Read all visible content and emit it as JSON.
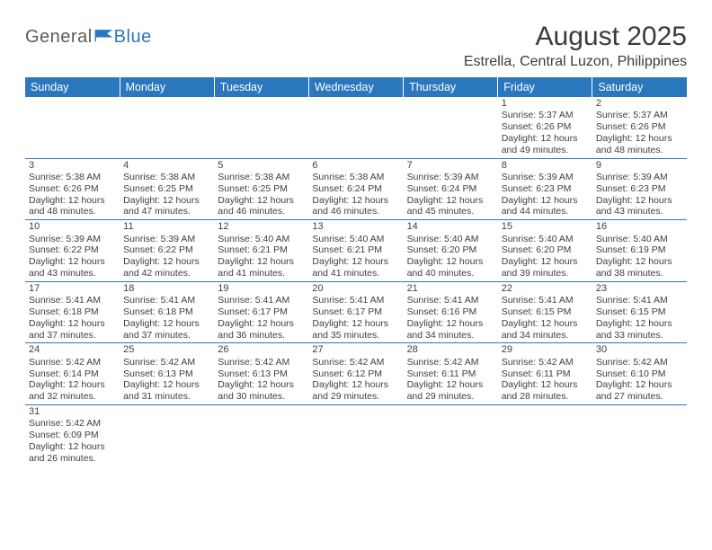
{
  "logo": {
    "text1": "General",
    "text2": "Blue"
  },
  "title": "August 2025",
  "location": "Estrella, Central Luzon, Philippines",
  "colors": {
    "header_bg": "#2b77bd",
    "header_text": "#ffffff",
    "border": "#2b77bd",
    "body_text": "#404040",
    "logo_gray": "#5b5b5b",
    "logo_blue": "#2b77bd",
    "background": "#ffffff"
  },
  "weekdays": [
    "Sunday",
    "Monday",
    "Tuesday",
    "Wednesday",
    "Thursday",
    "Friday",
    "Saturday"
  ],
  "weeks": [
    [
      null,
      null,
      null,
      null,
      null,
      {
        "day": "1",
        "sunrise": "5:37 AM",
        "sunset": "6:26 PM",
        "dl_h": "12",
        "dl_m": "49"
      },
      {
        "day": "2",
        "sunrise": "5:37 AM",
        "sunset": "6:26 PM",
        "dl_h": "12",
        "dl_m": "48"
      }
    ],
    [
      {
        "day": "3",
        "sunrise": "5:38 AM",
        "sunset": "6:26 PM",
        "dl_h": "12",
        "dl_m": "48"
      },
      {
        "day": "4",
        "sunrise": "5:38 AM",
        "sunset": "6:25 PM",
        "dl_h": "12",
        "dl_m": "47"
      },
      {
        "day": "5",
        "sunrise": "5:38 AM",
        "sunset": "6:25 PM",
        "dl_h": "12",
        "dl_m": "46"
      },
      {
        "day": "6",
        "sunrise": "5:38 AM",
        "sunset": "6:24 PM",
        "dl_h": "12",
        "dl_m": "46"
      },
      {
        "day": "7",
        "sunrise": "5:39 AM",
        "sunset": "6:24 PM",
        "dl_h": "12",
        "dl_m": "45"
      },
      {
        "day": "8",
        "sunrise": "5:39 AM",
        "sunset": "6:23 PM",
        "dl_h": "12",
        "dl_m": "44"
      },
      {
        "day": "9",
        "sunrise": "5:39 AM",
        "sunset": "6:23 PM",
        "dl_h": "12",
        "dl_m": "43"
      }
    ],
    [
      {
        "day": "10",
        "sunrise": "5:39 AM",
        "sunset": "6:22 PM",
        "dl_h": "12",
        "dl_m": "43"
      },
      {
        "day": "11",
        "sunrise": "5:39 AM",
        "sunset": "6:22 PM",
        "dl_h": "12",
        "dl_m": "42"
      },
      {
        "day": "12",
        "sunrise": "5:40 AM",
        "sunset": "6:21 PM",
        "dl_h": "12",
        "dl_m": "41"
      },
      {
        "day": "13",
        "sunrise": "5:40 AM",
        "sunset": "6:21 PM",
        "dl_h": "12",
        "dl_m": "41"
      },
      {
        "day": "14",
        "sunrise": "5:40 AM",
        "sunset": "6:20 PM",
        "dl_h": "12",
        "dl_m": "40"
      },
      {
        "day": "15",
        "sunrise": "5:40 AM",
        "sunset": "6:20 PM",
        "dl_h": "12",
        "dl_m": "39"
      },
      {
        "day": "16",
        "sunrise": "5:40 AM",
        "sunset": "6:19 PM",
        "dl_h": "12",
        "dl_m": "38"
      }
    ],
    [
      {
        "day": "17",
        "sunrise": "5:41 AM",
        "sunset": "6:18 PM",
        "dl_h": "12",
        "dl_m": "37"
      },
      {
        "day": "18",
        "sunrise": "5:41 AM",
        "sunset": "6:18 PM",
        "dl_h": "12",
        "dl_m": "37"
      },
      {
        "day": "19",
        "sunrise": "5:41 AM",
        "sunset": "6:17 PM",
        "dl_h": "12",
        "dl_m": "36"
      },
      {
        "day": "20",
        "sunrise": "5:41 AM",
        "sunset": "6:17 PM",
        "dl_h": "12",
        "dl_m": "35"
      },
      {
        "day": "21",
        "sunrise": "5:41 AM",
        "sunset": "6:16 PM",
        "dl_h": "12",
        "dl_m": "34"
      },
      {
        "day": "22",
        "sunrise": "5:41 AM",
        "sunset": "6:15 PM",
        "dl_h": "12",
        "dl_m": "34"
      },
      {
        "day": "23",
        "sunrise": "5:41 AM",
        "sunset": "6:15 PM",
        "dl_h": "12",
        "dl_m": "33"
      }
    ],
    [
      {
        "day": "24",
        "sunrise": "5:42 AM",
        "sunset": "6:14 PM",
        "dl_h": "12",
        "dl_m": "32"
      },
      {
        "day": "25",
        "sunrise": "5:42 AM",
        "sunset": "6:13 PM",
        "dl_h": "12",
        "dl_m": "31"
      },
      {
        "day": "26",
        "sunrise": "5:42 AM",
        "sunset": "6:13 PM",
        "dl_h": "12",
        "dl_m": "30"
      },
      {
        "day": "27",
        "sunrise": "5:42 AM",
        "sunset": "6:12 PM",
        "dl_h": "12",
        "dl_m": "29"
      },
      {
        "day": "28",
        "sunrise": "5:42 AM",
        "sunset": "6:11 PM",
        "dl_h": "12",
        "dl_m": "29"
      },
      {
        "day": "29",
        "sunrise": "5:42 AM",
        "sunset": "6:11 PM",
        "dl_h": "12",
        "dl_m": "28"
      },
      {
        "day": "30",
        "sunrise": "5:42 AM",
        "sunset": "6:10 PM",
        "dl_h": "12",
        "dl_m": "27"
      }
    ],
    [
      {
        "day": "31",
        "sunrise": "5:42 AM",
        "sunset": "6:09 PM",
        "dl_h": "12",
        "dl_m": "26"
      },
      null,
      null,
      null,
      null,
      null,
      null
    ]
  ],
  "labels": {
    "sunrise": "Sunrise: ",
    "sunset": "Sunset: ",
    "daylight_pre": "Daylight: ",
    "daylight_hours": " hours",
    "daylight_and": "and ",
    "daylight_min": " minutes."
  }
}
